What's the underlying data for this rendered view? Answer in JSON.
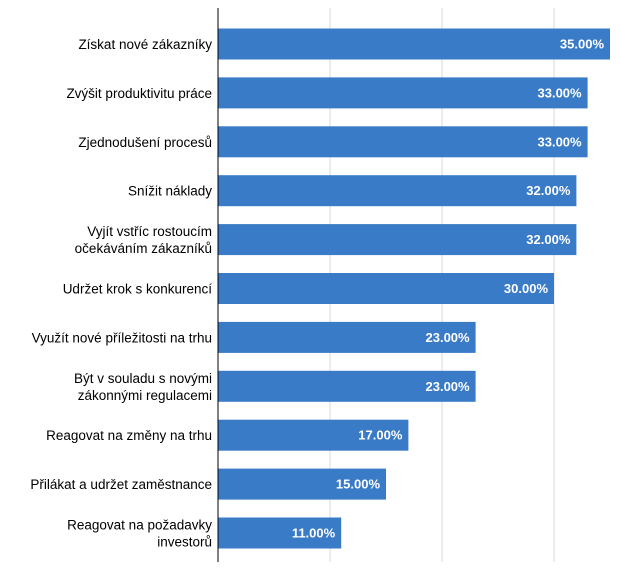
{
  "chart_data": {
    "type": "bar",
    "orientation": "horizontal",
    "title": "",
    "xlabel": "",
    "ylabel": "",
    "xlim": [
      0,
      0.35
    ],
    "grid": true,
    "bar_color": "#3a7bc8",
    "categories": [
      [
        "Získat nové zákazníky"
      ],
      [
        "Zvýšit produktivitu práce"
      ],
      [
        "Zjednodušení procesů"
      ],
      [
        "Snížit náklady"
      ],
      [
        "Vyjít vstříc rostoucím",
        "očekáváním zákazníků"
      ],
      [
        "Udržet krok s konkurencí"
      ],
      [
        "Využít nové příležitosti na trhu"
      ],
      [
        "Být v souladu s novými",
        "zákonnými regulacemi"
      ],
      [
        "Reagovat na změny na trhu"
      ],
      [
        "Přilákat a udržet zaměstnance"
      ],
      [
        "Reagovat na požadavky",
        "investorů"
      ]
    ],
    "values": [
      0.35,
      0.33,
      0.33,
      0.32,
      0.32,
      0.3,
      0.23,
      0.23,
      0.17,
      0.15,
      0.11
    ],
    "value_labels": [
      "35.00%",
      "33.00%",
      "33.00%",
      "32.00%",
      "32.00%",
      "30.00%",
      "23.00%",
      "23.00%",
      "17.00%",
      "15.00%",
      "11.00%"
    ]
  }
}
